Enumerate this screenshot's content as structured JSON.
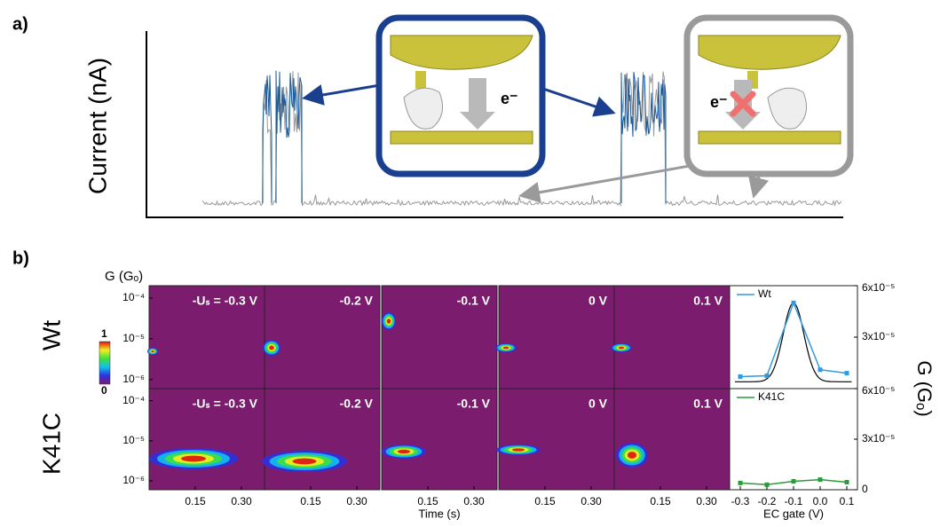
{
  "panel_a": {
    "label": "a)",
    "y_label": "Current (nA)",
    "inset_labels": [
      "e⁻",
      "e⁻"
    ]
  },
  "panel_b": {
    "label": "b)",
    "heatmap_y_label": "G (Gₒ)",
    "rows": [
      "Wt",
      "K41C"
    ],
    "colorbar_ticks": [
      1,
      0
    ],
    "conditions": [
      "-Uₛ = -0.3 V",
      "-0.2 V",
      "-0.1 V",
      "0 V",
      "0.1 V"
    ],
    "heatmap_ylim": [
      6e-07,
      0.0002
    ],
    "heatmap_yticks": [
      {
        "value": 0.0001,
        "label": "10⁻⁴"
      },
      {
        "value": 1e-05,
        "label": "10⁻⁵"
      },
      {
        "value": 1e-06,
        "label": "10⁻⁶"
      }
    ],
    "heatmap_xlim": [
      0,
      0.375
    ],
    "heatmap_xticks": [
      0.15,
      {
        "value": 0.3,
        "label": "0.30"
      }
    ],
    "heatmap_x_label": "Time (s)"
  },
  "chart_data": {
    "type": "line",
    "x_label": "EC gate (V)",
    "y_label": "G (Gₒ)",
    "x": [
      -0.3,
      -0.2,
      -0.1,
      0,
      0.1
    ],
    "xlim": [
      -0.34,
      0.14
    ],
    "xticks": [
      -0.3,
      -0.2,
      -0.1,
      {
        "value": 0,
        "label": "0.0"
      },
      0.1
    ],
    "ylim": [
      0,
      6e-05
    ],
    "yticks": [
      0,
      {
        "value": 3e-05,
        "label": "3x10⁻⁵"
      },
      {
        "value": 6e-05,
        "label": "6x10⁻⁵"
      }
    ],
    "series": [
      {
        "name": "Wt",
        "color": "#2e9be0",
        "values": [
          7e-06,
          7.5e-06,
          5e-05,
          1.1e-05,
          9e-06
        ]
      },
      {
        "name": "K41C",
        "color": "#2a9a3a",
        "values": [
          4e-06,
          3e-06,
          5e-06,
          6e-06,
          4.5e-06
        ]
      }
    ]
  }
}
